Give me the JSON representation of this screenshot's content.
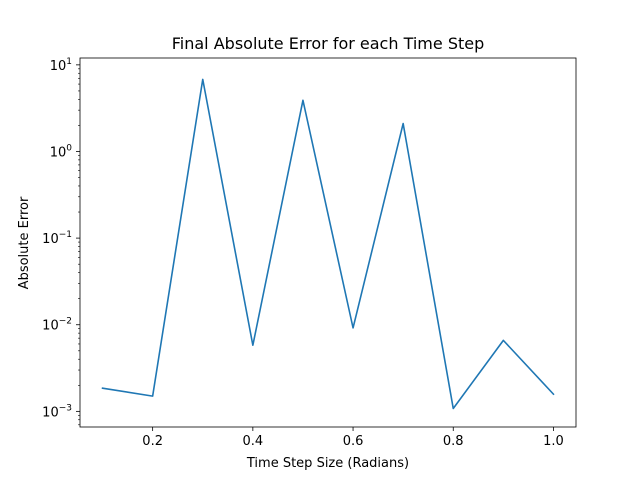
{
  "chart_data": {
    "type": "line",
    "title": "Final Absolute Error for each Time Step",
    "xlabel": "Time Step Size (Radians)",
    "ylabel": "Absolute Error",
    "yscale": "log",
    "xlim": [
      0.055,
      1.045
    ],
    "ylim": [
      0.00066,
      12
    ],
    "grid": false,
    "x_ticks": [
      {
        "value": 0.2,
        "label": "0.2"
      },
      {
        "value": 0.4,
        "label": "0.4"
      },
      {
        "value": 0.6,
        "label": "0.6"
      },
      {
        "value": 0.8,
        "label": "0.8"
      },
      {
        "value": 1.0,
        "label": "1.0"
      }
    ],
    "y_ticks": [
      {
        "value": 0.001,
        "base": "10",
        "exp": "−3"
      },
      {
        "value": 0.01,
        "base": "10",
        "exp": "−2"
      },
      {
        "value": 0.1,
        "base": "10",
        "exp": "−1"
      },
      {
        "value": 1,
        "base": "10",
        "exp": "0"
      },
      {
        "value": 10,
        "base": "10",
        "exp": "1"
      }
    ],
    "series": [
      {
        "color": "#1f77b4",
        "x": [
          0.1,
          0.2,
          0.3,
          0.4,
          0.5,
          0.6,
          0.7,
          0.8,
          0.9,
          1.0
        ],
        "y": [
          0.00185,
          0.0015,
          6.8,
          0.0058,
          3.9,
          0.0092,
          2.1,
          0.00108,
          0.0066,
          0.00158
        ]
      }
    ]
  }
}
